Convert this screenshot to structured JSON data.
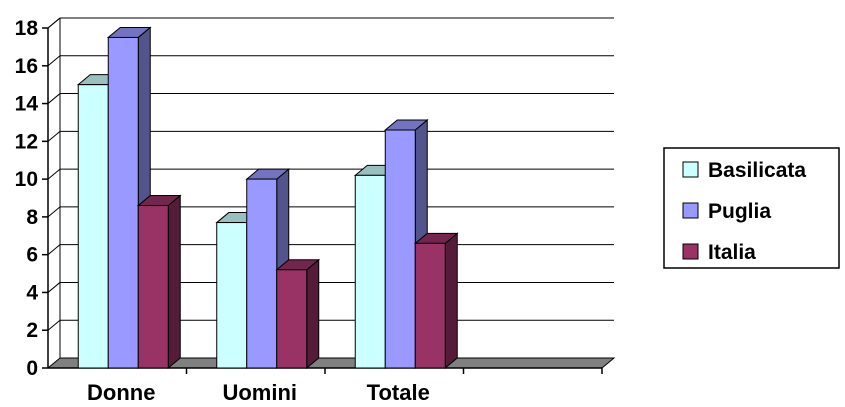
{
  "chart_data": {
    "type": "bar",
    "categories": [
      "Donne",
      "Uomini",
      "Totale",
      ""
    ],
    "series": [
      {
        "name": "Basilicata",
        "values": [
          15.0,
          7.7,
          10.2,
          null
        ],
        "color": "#ccffff"
      },
      {
        "name": "Puglia",
        "values": [
          17.5,
          10.0,
          12.6,
          null
        ],
        "color": "#9999ff"
      },
      {
        "name": "Italia",
        "values": [
          8.6,
          5.2,
          6.6,
          null
        ],
        "color": "#993366"
      }
    ],
    "yticks": [
      "0",
      "2",
      "4",
      "6",
      "8",
      "10",
      "12",
      "14",
      "16",
      "18"
    ],
    "ylim": [
      0,
      18
    ],
    "grid": true,
    "legend": "right",
    "three_d": true
  }
}
